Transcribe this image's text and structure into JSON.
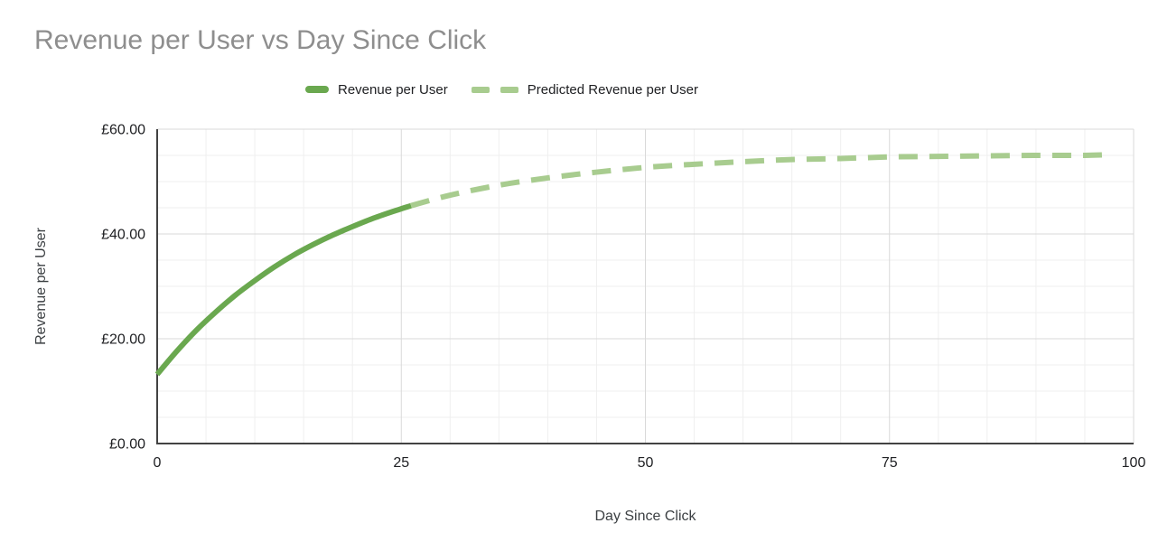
{
  "title": "Revenue per User vs Day Since Click",
  "colors": {
    "series_solid": "#6aa84f",
    "series_dashed": "#a8cc8f",
    "title_text": "#8e8e8e",
    "axis_line": "#424242",
    "gridline_major": "#d9d9d9",
    "gridline_minor": "#efefef",
    "tick_text": "#202124"
  },
  "chart_data": {
    "type": "line",
    "title": "Revenue per User vs Day Since Click",
    "xlabel": "Day Since Click",
    "ylabel": "Revenue per User",
    "xlim": [
      0,
      100
    ],
    "ylim": [
      0,
      60
    ],
    "grid": "major and minor on, minor step 5 on both axes",
    "legend_position": "top",
    "currency": "£",
    "x_axis": {
      "label": "Day Since Click",
      "min": 0,
      "max": 100,
      "major_ticks": [
        0,
        25,
        50,
        75,
        100
      ],
      "major_tick_labels": [
        "0",
        "25",
        "50",
        "75",
        "100"
      ],
      "minor_step": 5
    },
    "y_axis": {
      "label": "Revenue per User",
      "min": 0,
      "max": 60,
      "major_ticks": [
        0,
        20,
        40,
        60
      ],
      "major_tick_labels": [
        "£0.00",
        "£20.00",
        "£40.00",
        "£60.00"
      ],
      "minor_step": 5
    },
    "series": [
      {
        "name": "Revenue per User",
        "style": "solid",
        "color": "#6aa84f",
        "x": [
          0,
          2,
          4,
          6,
          8,
          10,
          12,
          14,
          16,
          18,
          20,
          22,
          24,
          26
        ],
        "y": [
          13.2,
          17.6,
          21.6,
          25.1,
          28.3,
          31.1,
          33.7,
          36.0,
          38.0,
          39.8,
          41.4,
          42.9,
          44.2,
          45.4
        ]
      },
      {
        "name": "Predicted Revenue per User",
        "style": "dashed",
        "color": "#a8cc8f",
        "x": [
          26,
          30,
          35,
          40,
          45,
          50,
          55,
          60,
          65,
          70,
          75,
          80,
          85,
          90,
          95,
          97
        ],
        "y": [
          45.4,
          47.4,
          49.3,
          50.7,
          51.8,
          52.7,
          53.3,
          53.8,
          54.2,
          54.4,
          54.7,
          54.8,
          54.9,
          55.0,
          55.0,
          55.1
        ]
      }
    ]
  }
}
